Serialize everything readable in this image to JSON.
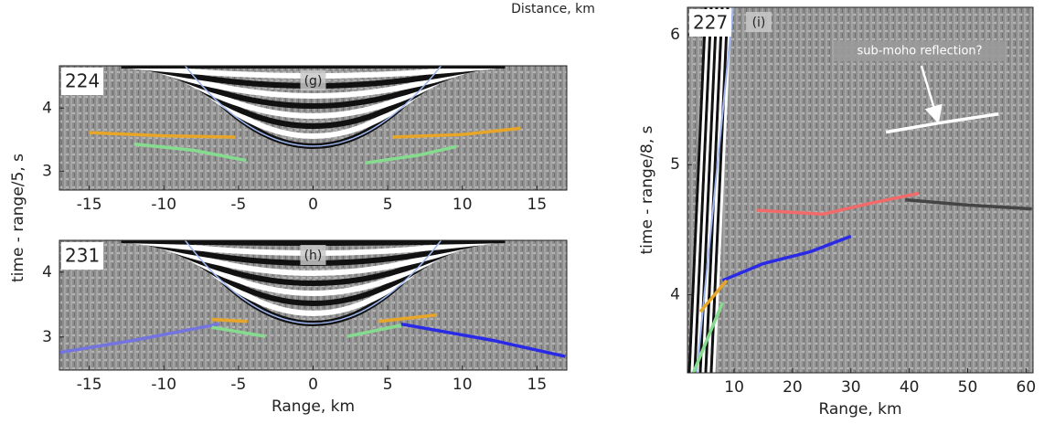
{
  "figure_label": "Distance, km",
  "chart_data": [
    {
      "type": "line",
      "panel_label": "224",
      "annotation": "(g)",
      "y_label": "time - range/5, s",
      "xlim": [
        -17,
        17
      ],
      "ylim": [
        2.7,
        4.67
      ],
      "xticks": [
        -15,
        -10,
        -5,
        0,
        5,
        10,
        15
      ],
      "yticks": [
        3,
        4
      ],
      "series": [
        {
          "color": "#e8a628",
          "x": [
            -15,
            -10,
            -5.2
          ],
          "values": [
            3.61,
            3.56,
            3.54
          ]
        },
        {
          "color": "#e8a628",
          "x": [
            5.3,
            10,
            13.9
          ],
          "values": [
            3.54,
            3.58,
            3.68
          ]
        },
        {
          "color": "#86dc8e",
          "x": [
            -12,
            -8,
            -4.5
          ],
          "values": [
            3.43,
            3.33,
            3.17
          ]
        },
        {
          "color": "#86dc8e",
          "x": [
            3.5,
            7,
            9.6
          ],
          "values": [
            3.13,
            3.25,
            3.39
          ]
        }
      ]
    },
    {
      "type": "line",
      "panel_label": "231",
      "annotation": "(h)",
      "x_label": "Range, km",
      "xlim": [
        -17,
        17
      ],
      "ylim": [
        2.49,
        4.49
      ],
      "xticks": [
        -15,
        -10,
        -5,
        0,
        5,
        10,
        15
      ],
      "yticks": [
        3,
        4
      ],
      "series": [
        {
          "color": "#7474e0",
          "x": [
            -17,
            -12,
            -6.3
          ],
          "values": [
            2.76,
            2.95,
            3.2
          ]
        },
        {
          "color": "#2a2ae6",
          "x": [
            5.9,
            12,
            16.9
          ],
          "values": [
            3.2,
            2.95,
            2.7
          ]
        },
        {
          "color": "#e8a628",
          "x": [
            -6.8,
            -4.4
          ],
          "values": [
            3.27,
            3.24
          ]
        },
        {
          "color": "#e8a628",
          "x": [
            4.4,
            8.3
          ],
          "values": [
            3.24,
            3.34
          ]
        },
        {
          "color": "#86dc8e",
          "x": [
            -6.8,
            -3.2
          ],
          "values": [
            3.15,
            3.01
          ]
        },
        {
          "color": "#86dc8e",
          "x": [
            2.3,
            5.9
          ],
          "values": [
            3.01,
            3.18
          ]
        }
      ]
    },
    {
      "type": "line",
      "panel_label": "227",
      "annotation": "(i)",
      "note": "sub-moho reflection?",
      "x_label": "Range, km",
      "y_label": "time - range/8, s",
      "xlim": [
        2,
        61.2
      ],
      "ylim": [
        3.4,
        6.21
      ],
      "xticks": [
        10,
        20,
        30,
        40,
        50,
        60
      ],
      "yticks": [
        4,
        5,
        6
      ],
      "series": [
        {
          "color": "#f26a6a",
          "x": [
            13.9,
            25.2,
            33,
            41.6
          ],
          "values": [
            4.65,
            4.62,
            4.7,
            4.78
          ]
        },
        {
          "color": "#2a2ae6",
          "x": [
            8,
            15,
            23,
            30
          ],
          "values": [
            4.11,
            4.24,
            4.33,
            4.45
          ]
        },
        {
          "color": "#444444",
          "x": [
            39.3,
            50,
            61
          ],
          "values": [
            4.73,
            4.69,
            4.66
          ]
        },
        {
          "color": "#e8a628",
          "x": [
            4.2,
            8.7
          ],
          "values": [
            3.87,
            4.11
          ]
        },
        {
          "color": "#86dc8e",
          "x": [
            3,
            8
          ],
          "values": [
            3.4,
            3.94
          ]
        },
        {
          "color": "#ffffff",
          "x": [
            36,
            45,
            55.3
          ],
          "values": [
            5.25,
            5.32,
            5.39
          ]
        }
      ]
    }
  ]
}
